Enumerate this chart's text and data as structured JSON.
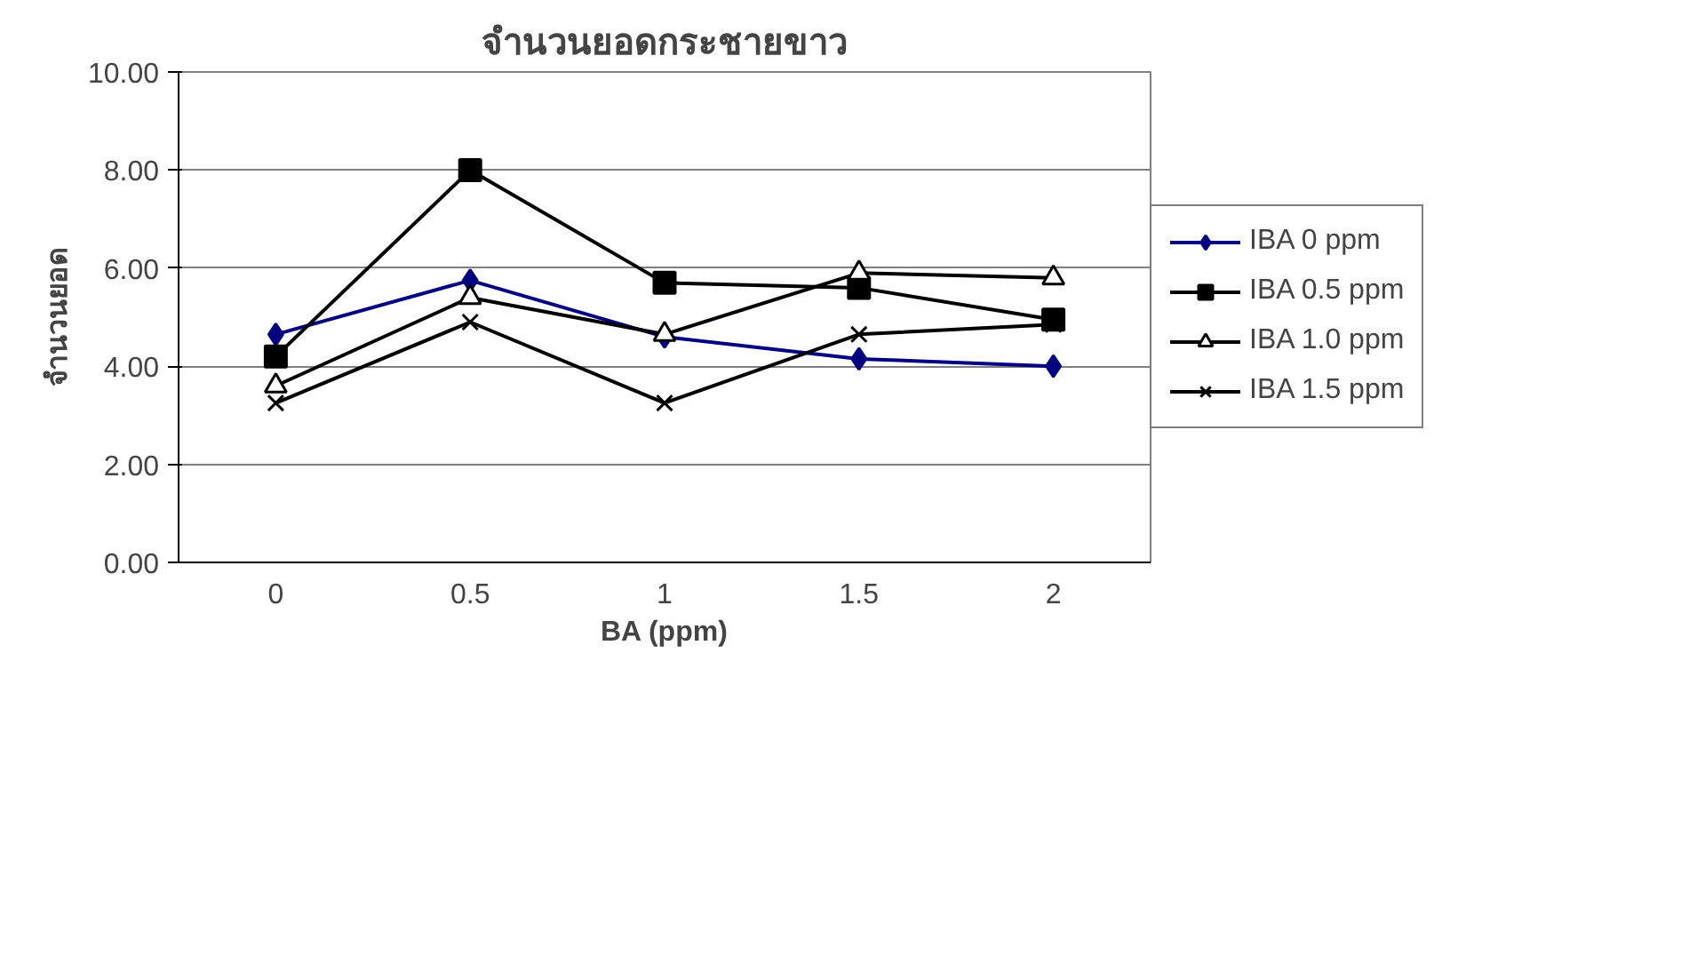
{
  "chart_data": {
    "type": "line",
    "title": "จำนวนยอดกระชายขาว",
    "xlabel": "BA (ppm)",
    "ylabel": "จำนวนยอด",
    "categories": [
      "0",
      "0.5",
      "1",
      "1.5",
      "2"
    ],
    "series": [
      {
        "name": "IBA 0 ppm",
        "color": "#000080",
        "marker": "diamond",
        "values": [
          4.65,
          5.75,
          4.6,
          4.15,
          4.0
        ]
      },
      {
        "name": "IBA 0.5 ppm",
        "color": "#000000",
        "marker": "square",
        "values": [
          4.2,
          8.0,
          5.7,
          5.6,
          4.95
        ]
      },
      {
        "name": "IBA 1.0 ppm",
        "color": "#000000",
        "marker": "triangle",
        "values": [
          3.6,
          5.4,
          4.65,
          5.9,
          5.8
        ]
      },
      {
        "name": "IBA 1.5 ppm",
        "color": "#000000",
        "marker": "cross",
        "values": [
          3.25,
          4.9,
          3.25,
          4.65,
          4.85
        ]
      }
    ],
    "ylim": [
      0,
      10
    ],
    "yticks": [
      {
        "value": 0,
        "label": "0.00"
      },
      {
        "value": 2,
        "label": "2.00"
      },
      {
        "value": 4,
        "label": "4.00"
      },
      {
        "value": 6,
        "label": "6.00"
      },
      {
        "value": 8,
        "label": "8.00"
      },
      {
        "value": 10,
        "label": "10.00"
      }
    ],
    "grid": "y",
    "legend": "right"
  }
}
